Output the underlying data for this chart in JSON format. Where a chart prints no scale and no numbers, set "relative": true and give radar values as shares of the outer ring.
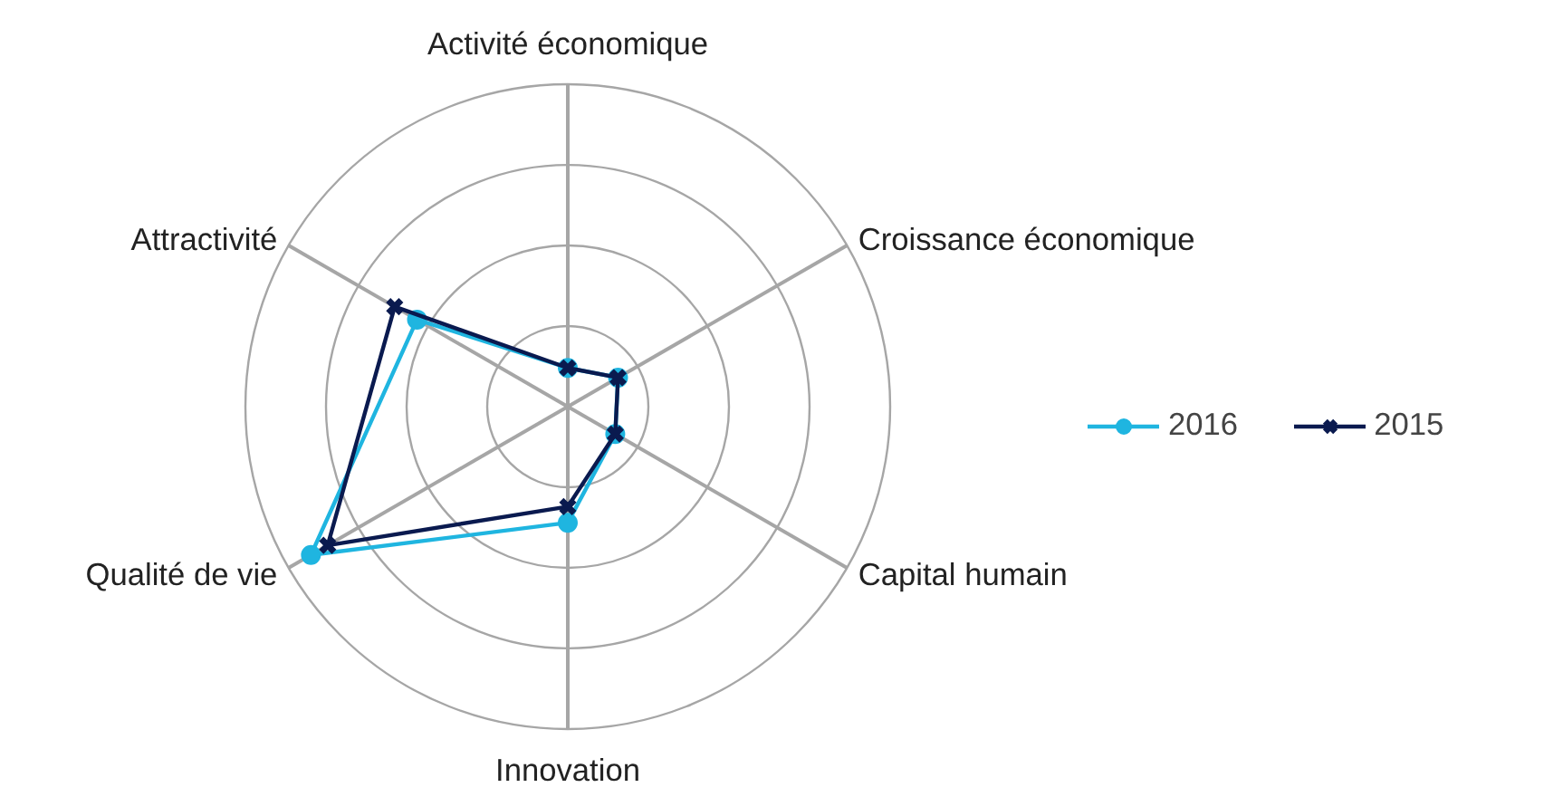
{
  "chart_data": {
    "type": "radar",
    "relative": true,
    "categories": [
      "Activité économique",
      "Croissance économique",
      "Capital humain",
      "Innovation",
      "Qualité de vie",
      "Attractivité"
    ],
    "series": [
      {
        "name": "2016",
        "color": "#1fb5e0",
        "marker": "circle",
        "values": [
          0.12,
          0.18,
          0.17,
          0.36,
          0.92,
          0.54
        ]
      },
      {
        "name": "2015",
        "color": "#0a1a4f",
        "marker": "cross",
        "values": [
          0.12,
          0.18,
          0.17,
          0.31,
          0.86,
          0.62
        ]
      }
    ],
    "grid": true,
    "legend": "right"
  }
}
